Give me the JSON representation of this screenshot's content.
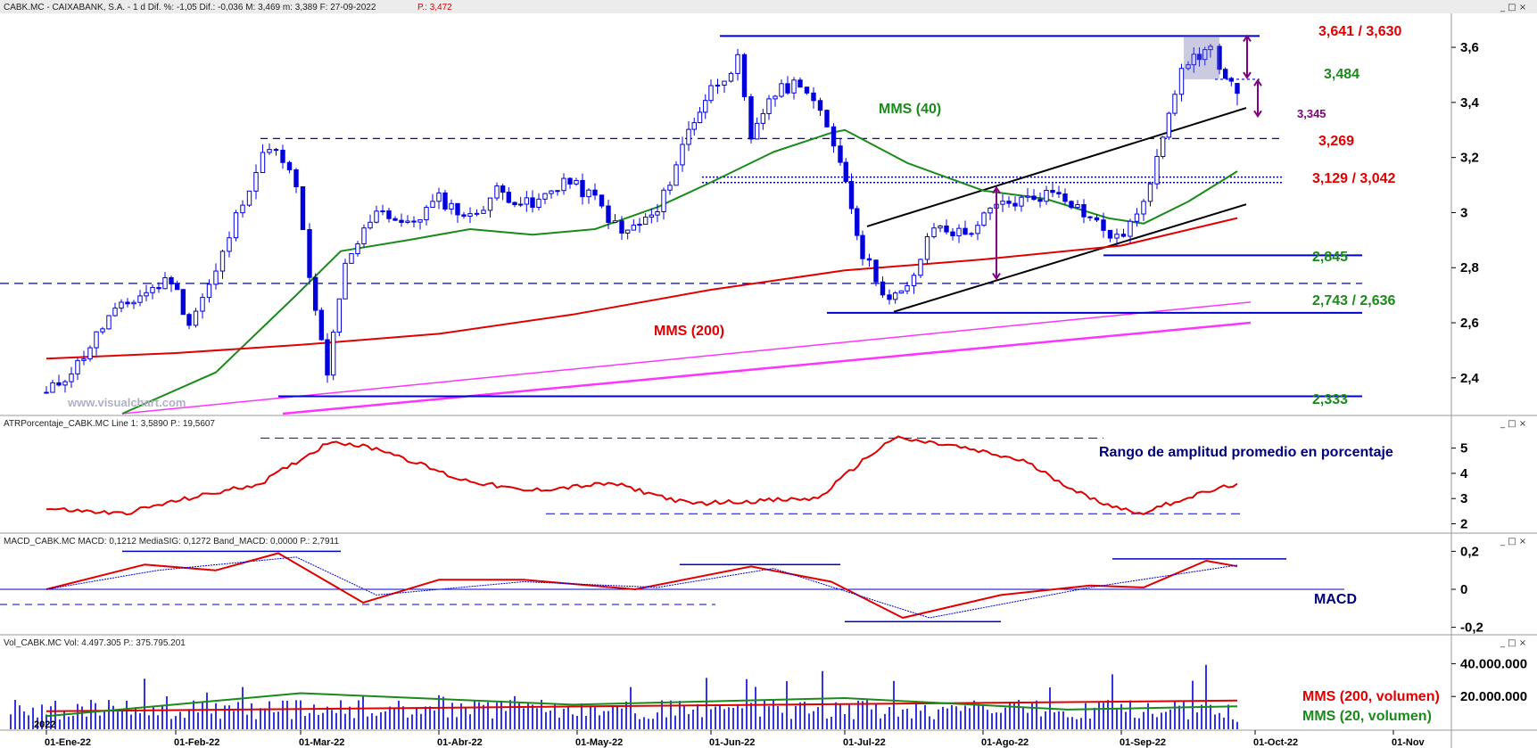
{
  "header": {
    "price": "CABK.MC - CAIXABANK, S.A. -  1 d  Dif. %: -1,05  Dif.: -0,036  M: 3,469  m: 3,389  F: 27-09-2022",
    "price_tail": "P.: 3,472",
    "atr": "ATRPorcentaje_CABK.MC  Line 1: 3,5890  P.: 19,5607",
    "macd": "MACD_CABK.MC  MACD: 0,1212  MediaSIG: 0,1272  Band_MACD: 0,0000  P.: 2,7911",
    "vol": "Vol_CABK.MC  Vol: 4.497.305  P.: 375.795.201"
  },
  "window_controls": "_ □ ×",
  "watermark": "www.visualchart.com",
  "year_label": "2022",
  "colors": {
    "candle": "#0000dd",
    "mms40": "#1a8a1a",
    "mms200": "#e00000",
    "support_line": "#0000cc",
    "channel": "#000000",
    "magenta": "#ff33ff",
    "arrow": "#800080"
  },
  "levels": [
    {
      "text": "3,641 / 3,630",
      "color": "#e00000"
    },
    {
      "text": "3,484",
      "color": "#1a8a1a"
    },
    {
      "text": "3,345",
      "color": "#800080"
    },
    {
      "text": "3,269",
      "color": "#e00000"
    },
    {
      "text": "3,129 / 3,042",
      "color": "#e00000"
    },
    {
      "text": "2,845",
      "color": "#1a8a1a"
    },
    {
      "text": "2,743 / 2,636",
      "color": "#1a8a1a"
    },
    {
      "text": "2,333",
      "color": "#1a8a1a"
    }
  ],
  "annotations": {
    "mms40": "MMS (40)",
    "mms200": "MMS (200)",
    "atr_title": "Rango de amplitud promedio en porcentaje",
    "macd_title": "MACD",
    "vol200": "MMS (200, volumen)",
    "vol20": "MMS (20, volumen)"
  },
  "chart_data": [
    {
      "type": "candlestick",
      "title": "CABK.MC - CAIXABANK, S.A. - 1 d",
      "x_tick_labels": [
        "01-Ene-22",
        "01-Feb-22",
        "01-Mar-22",
        "01-Abr-22",
        "01-May-22",
        "01-Jun-22",
        "01-Jul-22",
        "01-Ago-22",
        "01-Sep-22",
        "01-Oct-22",
        "01-Nov"
      ],
      "y_ticks": [
        "3,6",
        "3,4",
        "3,2",
        "3",
        "2,8",
        "2,6",
        "2,4"
      ],
      "ylim": [
        2.27,
        3.72
      ],
      "last_date": "27-09-2022",
      "last": {
        "open": 3.469,
        "high": 3.469,
        "low": 3.389,
        "close": 3.433
      },
      "close_series": [
        {
          "x": "2022-01-03",
          "y": 2.34
        },
        {
          "x": "2022-01-10",
          "y": 2.45
        },
        {
          "x": "2022-01-17",
          "y": 2.62
        },
        {
          "x": "2022-01-24",
          "y": 2.7
        },
        {
          "x": "2022-01-31",
          "y": 2.76
        },
        {
          "x": "2022-02-04",
          "y": 2.6
        },
        {
          "x": "2022-02-10",
          "y": 2.78
        },
        {
          "x": "2022-02-16",
          "y": 3.05
        },
        {
          "x": "2022-02-22",
          "y": 3.25
        },
        {
          "x": "2022-02-28",
          "y": 3.1
        },
        {
          "x": "2022-03-03",
          "y": 2.75
        },
        {
          "x": "2022-03-07",
          "y": 2.42
        },
        {
          "x": "2022-03-11",
          "y": 2.8
        },
        {
          "x": "2022-03-18",
          "y": 3.02
        },
        {
          "x": "2022-03-25",
          "y": 2.95
        },
        {
          "x": "2022-04-01",
          "y": 3.05
        },
        {
          "x": "2022-04-08",
          "y": 2.98
        },
        {
          "x": "2022-04-14",
          "y": 3.08
        },
        {
          "x": "2022-04-22",
          "y": 3.02
        },
        {
          "x": "2022-04-29",
          "y": 3.12
        },
        {
          "x": "2022-05-06",
          "y": 3.05
        },
        {
          "x": "2022-05-12",
          "y": 2.92
        },
        {
          "x": "2022-05-20",
          "y": 3.0
        },
        {
          "x": "2022-05-27",
          "y": 3.3
        },
        {
          "x": "2022-06-01",
          "y": 3.45
        },
        {
          "x": "2022-06-07",
          "y": 3.55
        },
        {
          "x": "2022-06-10",
          "y": 3.25
        },
        {
          "x": "2022-06-14",
          "y": 3.42
        },
        {
          "x": "2022-06-21",
          "y": 3.48
        },
        {
          "x": "2022-06-24",
          "y": 3.4
        },
        {
          "x": "2022-06-30",
          "y": 3.2
        },
        {
          "x": "2022-07-05",
          "y": 2.85
        },
        {
          "x": "2022-07-11",
          "y": 2.68
        },
        {
          "x": "2022-07-15",
          "y": 2.72
        },
        {
          "x": "2022-07-21",
          "y": 2.95
        },
        {
          "x": "2022-07-28",
          "y": 2.92
        },
        {
          "x": "2022-08-04",
          "y": 3.02
        },
        {
          "x": "2022-08-11",
          "y": 3.05
        },
        {
          "x": "2022-08-18",
          "y": 3.08
        },
        {
          "x": "2022-08-25",
          "y": 2.98
        },
        {
          "x": "2022-08-31",
          "y": 2.9
        },
        {
          "x": "2022-09-06",
          "y": 3.02
        },
        {
          "x": "2022-09-09",
          "y": 3.22
        },
        {
          "x": "2022-09-13",
          "y": 3.45
        },
        {
          "x": "2022-09-16",
          "y": 3.55
        },
        {
          "x": "2022-09-21",
          "y": 3.6
        },
        {
          "x": "2022-09-23",
          "y": 3.5
        },
        {
          "x": "2022-09-27",
          "y": 3.43
        }
      ],
      "series": [
        {
          "name": "MMS (40)",
          "values": [
            {
              "x": "2022-01-20",
              "y": 2.27
            },
            {
              "x": "2022-02-10",
              "y": 2.42
            },
            {
              "x": "2022-02-28",
              "y": 2.7
            },
            {
              "x": "2022-03-10",
              "y": 2.86
            },
            {
              "x": "2022-03-25",
              "y": 2.9
            },
            {
              "x": "2022-04-08",
              "y": 2.94
            },
            {
              "x": "2022-04-22",
              "y": 2.92
            },
            {
              "x": "2022-05-06",
              "y": 2.94
            },
            {
              "x": "2022-05-20",
              "y": 3.02
            },
            {
              "x": "2022-06-01",
              "y": 3.11
            },
            {
              "x": "2022-06-15",
              "y": 3.22
            },
            {
              "x": "2022-06-28",
              "y": 3.29
            },
            {
              "x": "2022-07-01",
              "y": 3.3
            },
            {
              "x": "2022-07-15",
              "y": 3.18
            },
            {
              "x": "2022-08-01",
              "y": 3.08
            },
            {
              "x": "2022-08-15",
              "y": 3.05
            },
            {
              "x": "2022-08-29",
              "y": 2.98
            },
            {
              "x": "2022-09-06",
              "y": 2.96
            },
            {
              "x": "2022-09-16",
              "y": 3.04
            },
            {
              "x": "2022-09-27",
              "y": 3.15
            }
          ]
        },
        {
          "name": "MMS (200)",
          "values": [
            {
              "x": "2022-01-03",
              "y": 2.47
            },
            {
              "x": "2022-02-01",
              "y": 2.49
            },
            {
              "x": "2022-03-01",
              "y": 2.52
            },
            {
              "x": "2022-04-01",
              "y": 2.56
            },
            {
              "x": "2022-05-01",
              "y": 2.63
            },
            {
              "x": "2022-06-01",
              "y": 2.72
            },
            {
              "x": "2022-07-01",
              "y": 2.79
            },
            {
              "x": "2022-08-01",
              "y": 2.83
            },
            {
              "x": "2022-09-01",
              "y": 2.88
            },
            {
              "x": "2022-09-27",
              "y": 2.98
            }
          ]
        }
      ],
      "horizontal_levels": [
        3.641,
        3.63,
        3.484,
        3.345,
        3.269,
        3.129,
        3.042,
        2.845,
        2.743,
        2.636,
        2.333
      ],
      "grid": false
    },
    {
      "type": "line",
      "title": "ATRPorcentaje_CABK.MC",
      "y_ticks": [
        "5",
        "4",
        "3",
        "2"
      ],
      "ylim": [
        1.7,
        5.8
      ],
      "series": [
        {
          "name": "Line 1",
          "values": [
            {
              "x": "2022-01-03",
              "y": 2.6
            },
            {
              "x": "2022-01-20",
              "y": 2.4
            },
            {
              "x": "2022-02-01",
              "y": 2.9
            },
            {
              "x": "2022-02-20",
              "y": 3.6
            },
            {
              "x": "2022-03-08",
              "y": 5.3
            },
            {
              "x": "2022-03-20",
              "y": 4.9
            },
            {
              "x": "2022-04-05",
              "y": 3.8
            },
            {
              "x": "2022-04-20",
              "y": 3.3
            },
            {
              "x": "2022-05-10",
              "y": 3.6
            },
            {
              "x": "2022-05-27",
              "y": 2.8
            },
            {
              "x": "2022-06-10",
              "y": 2.9
            },
            {
              "x": "2022-06-25",
              "y": 3.0
            },
            {
              "x": "2022-07-05",
              "y": 4.5
            },
            {
              "x": "2022-07-12",
              "y": 5.4
            },
            {
              "x": "2022-07-25",
              "y": 5.1
            },
            {
              "x": "2022-08-10",
              "y": 4.5
            },
            {
              "x": "2022-08-25",
              "y": 3.0
            },
            {
              "x": "2022-09-05",
              "y": 2.4
            },
            {
              "x": "2022-09-15",
              "y": 3.0
            },
            {
              "x": "2022-09-27",
              "y": 3.589
            }
          ]
        }
      ]
    },
    {
      "type": "line",
      "title": "MACD_CABK.MC",
      "y_ticks": [
        "0,2",
        "0",
        "-0,2"
      ],
      "ylim": [
        -0.23,
        0.23
      ],
      "series": [
        {
          "name": "MACD",
          "values": [
            {
              "x": "2022-01-03",
              "y": 0.0
            },
            {
              "x": "2022-01-25",
              "y": 0.13
            },
            {
              "x": "2022-02-10",
              "y": 0.1
            },
            {
              "x": "2022-02-24",
              "y": 0.19
            },
            {
              "x": "2022-03-15",
              "y": -0.07
            },
            {
              "x": "2022-04-01",
              "y": 0.05
            },
            {
              "x": "2022-04-20",
              "y": 0.05
            },
            {
              "x": "2022-05-15",
              "y": 0.0
            },
            {
              "x": "2022-06-10",
              "y": 0.12
            },
            {
              "x": "2022-06-28",
              "y": 0.04
            },
            {
              "x": "2022-07-14",
              "y": -0.15
            },
            {
              "x": "2022-08-05",
              "y": -0.03
            },
            {
              "x": "2022-08-25",
              "y": 0.02
            },
            {
              "x": "2022-09-06",
              "y": 0.01
            },
            {
              "x": "2022-09-20",
              "y": 0.15
            },
            {
              "x": "2022-09-27",
              "y": 0.1212
            }
          ]
        },
        {
          "name": "MediaSIG",
          "values": [
            {
              "x": "2022-01-03",
              "y": 0.0
            },
            {
              "x": "2022-01-28",
              "y": 0.1
            },
            {
              "x": "2022-02-28",
              "y": 0.17
            },
            {
              "x": "2022-03-18",
              "y": -0.03
            },
            {
              "x": "2022-04-20",
              "y": 0.04
            },
            {
              "x": "2022-05-20",
              "y": 0.01
            },
            {
              "x": "2022-06-15",
              "y": 0.11
            },
            {
              "x": "2022-07-20",
              "y": -0.15
            },
            {
              "x": "2022-08-25",
              "y": 0.01
            },
            {
              "x": "2022-09-27",
              "y": 0.1272
            }
          ]
        }
      ]
    },
    {
      "type": "bar",
      "title": "Vol_CABK.MC",
      "y_ticks": [
        "40.000.000",
        "20.000.000"
      ],
      "ylim": [
        0,
        50000000
      ],
      "last_volume": 4497305,
      "series": [
        {
          "name": "MMS (200, volumen)",
          "values": [
            {
              "x": "2022-01-03",
              "y": 11000000
            },
            {
              "x": "2022-09-27",
              "y": 17500000
            }
          ]
        },
        {
          "name": "MMS (20, volumen)",
          "values": [
            {
              "x": "2022-01-03",
              "y": 8000000
            },
            {
              "x": "2022-03-01",
              "y": 22000000
            },
            {
              "x": "2022-05-01",
              "y": 15000000
            },
            {
              "x": "2022-07-01",
              "y": 19000000
            },
            {
              "x": "2022-08-20",
              "y": 12000000
            },
            {
              "x": "2022-09-27",
              "y": 14000000
            }
          ]
        }
      ]
    }
  ]
}
